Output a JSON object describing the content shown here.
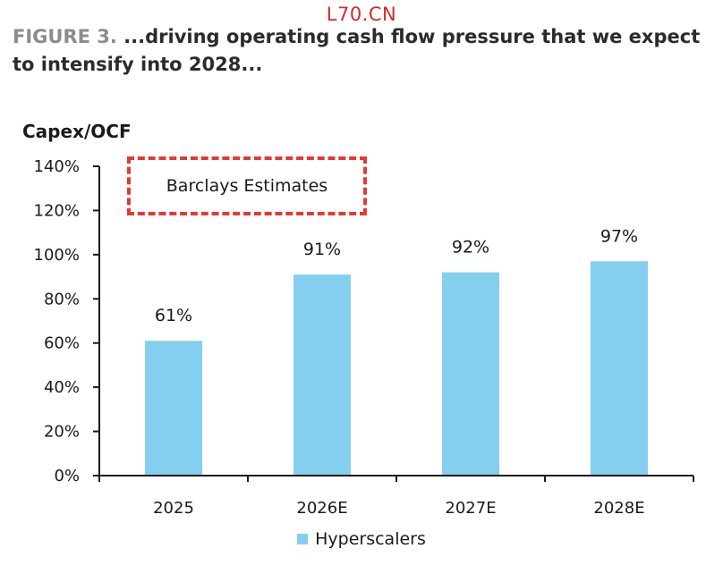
{
  "watermark": "L70.CN",
  "figure": {
    "label": "FIGURE 3.",
    "title": " ...driving operating cash flow pressure that we expect to intensify into 2028..."
  },
  "annotation": {
    "text": "Barclays Estimates",
    "color": "#e53935"
  },
  "chart_data": {
    "type": "bar",
    "ylabel": "Capex/OCF",
    "xlabel": "",
    "categories": [
      "2025",
      "2026E",
      "2027E",
      "2028E"
    ],
    "series": [
      {
        "name": "Hyperscalers",
        "values": [
          61,
          91,
          92,
          97
        ],
        "data_labels": [
          "61%",
          "91%",
          "92%",
          "97%"
        ],
        "color": "#84cff0"
      }
    ],
    "ylim": [
      0,
      140
    ],
    "yticks": [
      0,
      20,
      40,
      60,
      80,
      100,
      120,
      140
    ],
    "ytick_labels": [
      "0%",
      "20%",
      "40%",
      "60%",
      "80%",
      "100%",
      "120%",
      "140%"
    ],
    "grid": false,
    "legend": "bottom-center"
  }
}
